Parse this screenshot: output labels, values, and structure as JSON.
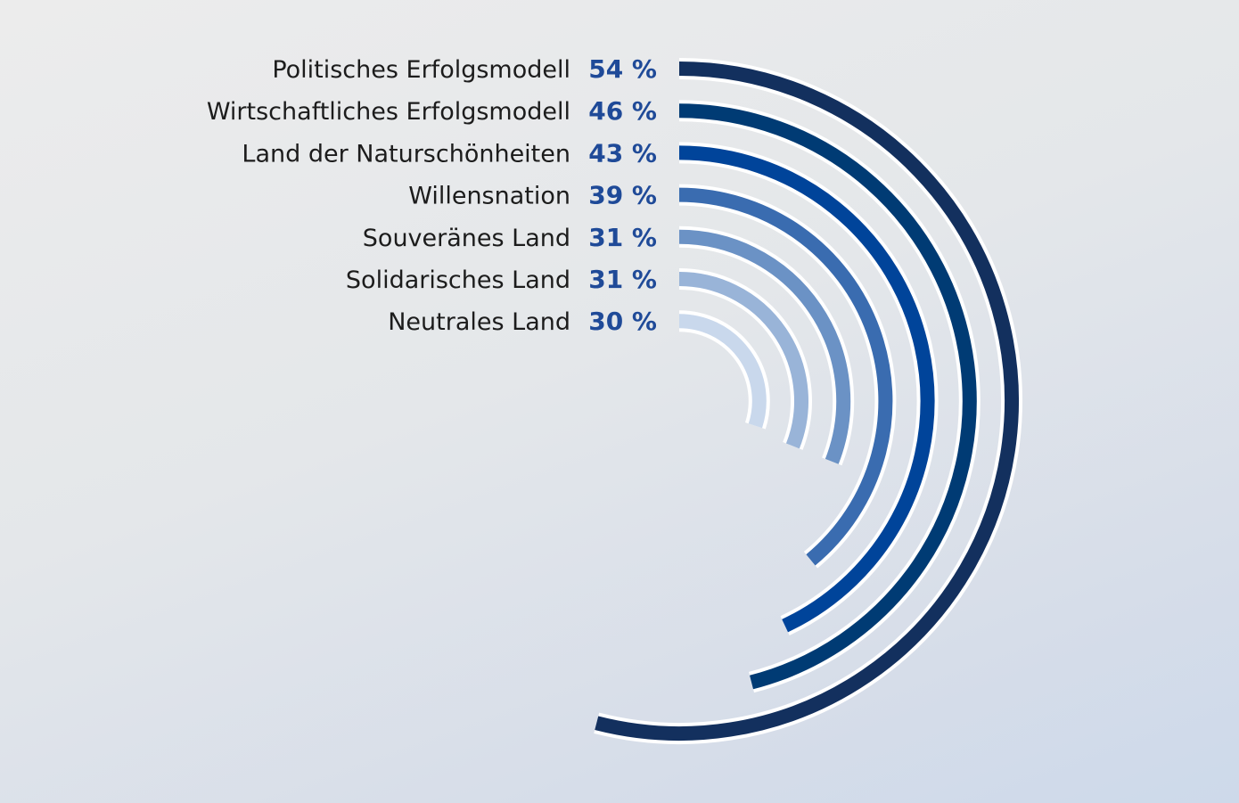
{
  "chart_data": {
    "type": "radial-bar",
    "max_value": 100,
    "value_suffix": " %",
    "categories": [
      "Politisches Erfolgsmodell",
      "Wirtschaftliches Erfolgsmodell",
      "Land der Naturschönheiten",
      "Willensnation",
      "Souveränes Land",
      "Solidarisches Land",
      "Neutrales Land"
    ],
    "values": [
      54,
      46,
      43,
      39,
      31,
      31,
      30
    ],
    "colors": [
      "#13305e",
      "#003b74",
      "#00449a",
      "#3a6cb0",
      "#6b92c5",
      "#99b4d8",
      "#c9d8ec"
    ]
  }
}
